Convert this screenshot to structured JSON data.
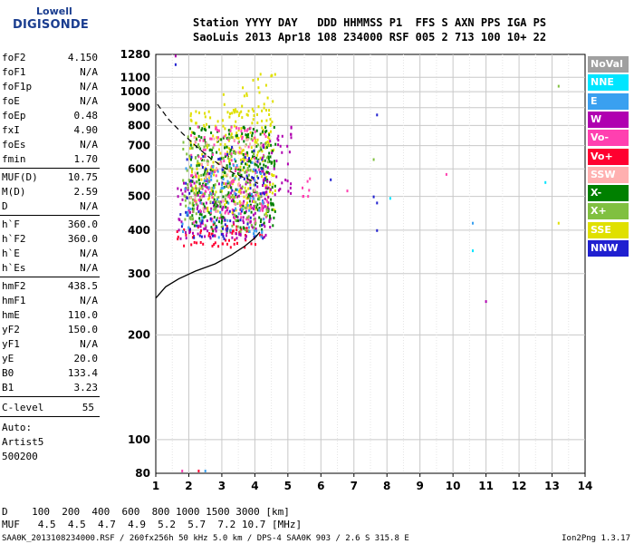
{
  "logo": {
    "top": "Lowell",
    "main": "DIGISONDE"
  },
  "header": {
    "line1": "Station YYYY DAY   DDD HHMMSS P1  FFS S AXN PPS IGA PS",
    "line2": "SaoLuis 2013 Apr18 108 234000 RSF 005 2 713 100 10+ 22"
  },
  "params_group1": [
    {
      "name": "foF2",
      "value": "4.150"
    },
    {
      "name": "foF1",
      "value": "N/A"
    },
    {
      "name": "foF1p",
      "value": "N/A"
    },
    {
      "name": "foE",
      "value": "N/A"
    },
    {
      "name": "foEp",
      "value": "0.48"
    },
    {
      "name": "fxI",
      "value": "4.90"
    },
    {
      "name": "foEs",
      "value": "N/A"
    },
    {
      "name": "fmin",
      "value": "1.70"
    }
  ],
  "params_group2": [
    {
      "name": "MUF(D)",
      "value": "10.75"
    },
    {
      "name": "M(D)",
      "value": "2.59"
    },
    {
      "name": "D",
      "value": "N/A"
    }
  ],
  "params_group3": [
    {
      "name": "h`F",
      "value": "360.0"
    },
    {
      "name": "h`F2",
      "value": "360.0"
    },
    {
      "name": "h`E",
      "value": "N/A"
    },
    {
      "name": "h`Es",
      "value": "N/A"
    }
  ],
  "params_group4": [
    {
      "name": "hmF2",
      "value": "438.5"
    },
    {
      "name": "hmF1",
      "value": "N/A"
    },
    {
      "name": "hmE",
      "value": "110.0"
    },
    {
      "name": "yF2",
      "value": "150.0"
    },
    {
      "name": "yF1",
      "value": "N/A"
    },
    {
      "name": "yE",
      "value": "20.0"
    },
    {
      "name": "B0",
      "value": "133.4"
    },
    {
      "name": "B1",
      "value": "3.23"
    }
  ],
  "clevel": {
    "name": "C-level",
    "value": "55"
  },
  "auto_lines": [
    "Auto:",
    "Artist5",
    "500200"
  ],
  "legend": [
    {
      "label": "NoVal",
      "color": "#a0a0a0"
    },
    {
      "label": "NNE",
      "color": "#00e5ff"
    },
    {
      "label": "E",
      "color": "#3aa0f0"
    },
    {
      "label": "W",
      "color": "#b000b0"
    },
    {
      "label": "Vo-",
      "color": "#ff40b0"
    },
    {
      "label": "Vo+",
      "color": "#ff0030"
    },
    {
      "label": "SSW",
      "color": "#ffb0b0"
    },
    {
      "label": "X-",
      "color": "#008000"
    },
    {
      "label": "X+",
      "color": "#80c040"
    },
    {
      "label": "SSE",
      "color": "#e0e000"
    },
    {
      "label": "NNW",
      "color": "#2020d0"
    }
  ],
  "footer": {
    "line1": "D    100  200  400  600  800 1000 1500 3000 [km]",
    "line2": "MUF   4.5  4.5  4.7  4.9  5.2  5.7  7.2 10.7 [MHz]",
    "bottom": "SAA0K_2013108234000.RSF / 260fx256h 50 kHz 5.0 km / DPS-4 SAA0K 903 / 2.6 S 315.8 E",
    "version": "Ion2Png 1.3.17"
  },
  "chart_data": {
    "type": "scatter",
    "title": "",
    "xlabel": "",
    "ylabel": "",
    "xlim": [
      1,
      14
    ],
    "ylim": [
      80,
      1280
    ],
    "yscale": "log",
    "x_ticks": [
      1,
      2,
      3,
      4,
      5,
      6,
      7,
      8,
      9,
      10,
      11,
      12,
      13,
      14
    ],
    "y_ticks": [
      80,
      100,
      200,
      300,
      400,
      500,
      600,
      700,
      800,
      900,
      1000,
      1100,
      1280
    ],
    "grid": true,
    "legend_position": "right",
    "profile_curve": {
      "name": "",
      "x": [
        1.0,
        1.3,
        1.7,
        2.2,
        2.8,
        3.3,
        3.7,
        4.0,
        4.15
      ],
      "y": [
        255,
        275,
        290,
        305,
        320,
        340,
        360,
        380,
        395
      ]
    },
    "muf_curve": {
      "name": "",
      "x": [
        1.05,
        1.4,
        1.8,
        2.2,
        2.6,
        3.0,
        3.4,
        3.8,
        4.1
      ],
      "y": [
        920,
        830,
        760,
        700,
        650,
        610,
        580,
        560,
        545
      ]
    },
    "bands": [
      {
        "x": [
          1.6,
          4.2
        ],
        "y": [
          360,
          420
        ],
        "color": "#ff0030",
        "weight": 3
      },
      {
        "x": [
          1.6,
          4.5
        ],
        "y": [
          380,
          560
        ],
        "color": "#b000b0",
        "weight": 3
      },
      {
        "x": [
          2.0,
          4.6
        ],
        "y": [
          450,
          900
        ],
        "color": "#e0e000",
        "weight": 3
      },
      {
        "x": [
          2.0,
          4.6
        ],
        "y": [
          400,
          800
        ],
        "color": "#008000",
        "weight": 3
      },
      {
        "x": [
          2.0,
          4.4
        ],
        "y": [
          420,
          800
        ],
        "color": "#ff40b0",
        "weight": 2
      },
      {
        "x": [
          1.8,
          4.4
        ],
        "y": [
          400,
          750
        ],
        "color": "#80c040",
        "weight": 2
      },
      {
        "x": [
          2.0,
          4.2
        ],
        "y": [
          450,
          750
        ],
        "color": "#ffb0b0",
        "weight": 1
      },
      {
        "x": [
          1.7,
          4.3
        ],
        "y": [
          380,
          700
        ],
        "color": "#2020d0",
        "weight": 1
      },
      {
        "x": [
          1.7,
          4.3
        ],
        "y": [
          380,
          650
        ],
        "color": "#3aa0f0",
        "weight": 1
      },
      {
        "x": [
          3.0,
          4.6
        ],
        "y": [
          850,
          1150
        ],
        "color": "#e0e000",
        "weight": 1
      },
      {
        "x": [
          4.2,
          5.1
        ],
        "y": [
          500,
          800
        ],
        "color": "#b000b0",
        "weight": 2
      },
      {
        "x": [
          5.3,
          5.8
        ],
        "y": [
          500,
          650
        ],
        "color": "#ff40b0",
        "weight": 1
      }
    ],
    "isolated_points": [
      {
        "x": 1.6,
        "y": 1270,
        "color": "#b000b0"
      },
      {
        "x": 1.6,
        "y": 1200,
        "color": "#2020d0"
      },
      {
        "x": 7.7,
        "y": 860,
        "color": "#2020d0"
      },
      {
        "x": 7.6,
        "y": 500,
        "color": "#2020d0"
      },
      {
        "x": 7.7,
        "y": 480,
        "color": "#2020d0"
      },
      {
        "x": 7.7,
        "y": 400,
        "color": "#2020d0"
      },
      {
        "x": 7.6,
        "y": 640,
        "color": "#80c040"
      },
      {
        "x": 8.1,
        "y": 495,
        "color": "#00e5ff"
      },
      {
        "x": 9.8,
        "y": 580,
        "color": "#ff40b0"
      },
      {
        "x": 10.6,
        "y": 420,
        "color": "#3aa0f0"
      },
      {
        "x": 10.6,
        "y": 350,
        "color": "#00e5ff"
      },
      {
        "x": 11.0,
        "y": 250,
        "color": "#b000b0"
      },
      {
        "x": 12.8,
        "y": 550,
        "color": "#00e5ff"
      },
      {
        "x": 13.2,
        "y": 1040,
        "color": "#80c040"
      },
      {
        "x": 13.2,
        "y": 420,
        "color": "#e0e000"
      },
      {
        "x": 6.3,
        "y": 560,
        "color": "#2020d0"
      },
      {
        "x": 6.8,
        "y": 520,
        "color": "#ff40b0"
      },
      {
        "x": 1.8,
        "y": 80,
        "color": "#ff40b0"
      },
      {
        "x": 2.3,
        "y": 80,
        "color": "#ff0030"
      },
      {
        "x": 2.5,
        "y": 80,
        "color": "#3aa0f0"
      }
    ]
  }
}
